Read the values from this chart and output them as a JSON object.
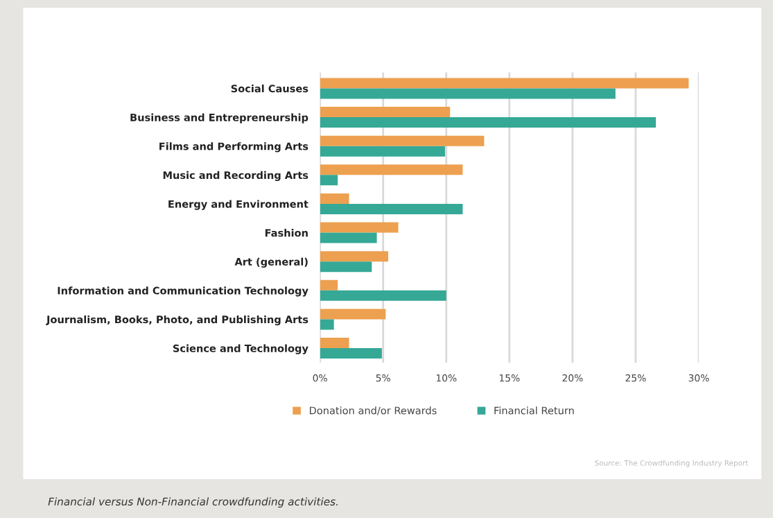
{
  "chart_data": {
    "type": "bar",
    "orientation": "horizontal",
    "categories": [
      "Social Causes",
      "Business and Entrepreneurship",
      "Films and Performing Arts",
      "Music and Recording Arts",
      "Energy and Environment",
      "Fashion",
      "Art (general)",
      "Information and Communication Technology",
      "Journalism, Books, Photo, and Publishing Arts",
      "Science and Technology"
    ],
    "series": [
      {
        "name": "Donation and/or Rewards",
        "color": "#eda04f",
        "values": [
          29.2,
          10.3,
          13.0,
          11.3,
          2.3,
          6.2,
          5.4,
          1.4,
          5.2,
          2.3
        ]
      },
      {
        "name": "Financial Return",
        "color": "#35a896",
        "values": [
          23.4,
          26.6,
          9.9,
          1.4,
          11.3,
          4.5,
          4.1,
          10.0,
          1.1,
          4.9
        ]
      }
    ],
    "xlim": [
      0,
      30
    ],
    "xticks": [
      {
        "value": 0,
        "label": "0%"
      },
      {
        "value": 5,
        "label": "5%"
      },
      {
        "value": 10,
        "label": "10%"
      },
      {
        "value": 15,
        "label": "15%"
      },
      {
        "value": 20,
        "label": "20%"
      },
      {
        "value": 25,
        "label": "25%"
      },
      {
        "value": 30,
        "label": "30%"
      }
    ],
    "grid": "x",
    "legend": "bottom",
    "annotations": [
      "Source: The Crowdfunding Industry Report",
      "Financial versus Non-Financial crowdfunding activities."
    ]
  }
}
